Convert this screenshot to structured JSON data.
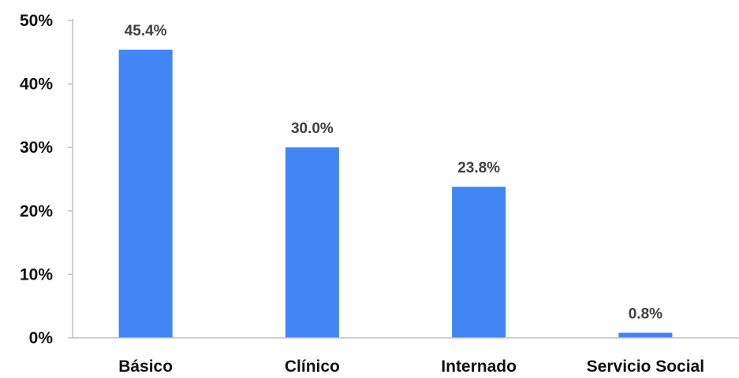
{
  "chart_data": {
    "type": "bar",
    "categories": [
      "Básico",
      "Clínico",
      "Internado",
      "Servicio Social"
    ],
    "values": [
      45.4,
      30.0,
      23.8,
      0.8
    ],
    "data_labels": [
      "45.4%",
      "30.0%",
      "23.8%",
      "0.8%"
    ],
    "y_ticks": [
      "0%",
      "10%",
      "20%",
      "30%",
      "40%",
      "50%"
    ],
    "ylim": [
      0,
      50
    ],
    "grid": false,
    "legend": "none",
    "bar_color": "#4285f4",
    "axis_color": "#bfbfbf"
  }
}
